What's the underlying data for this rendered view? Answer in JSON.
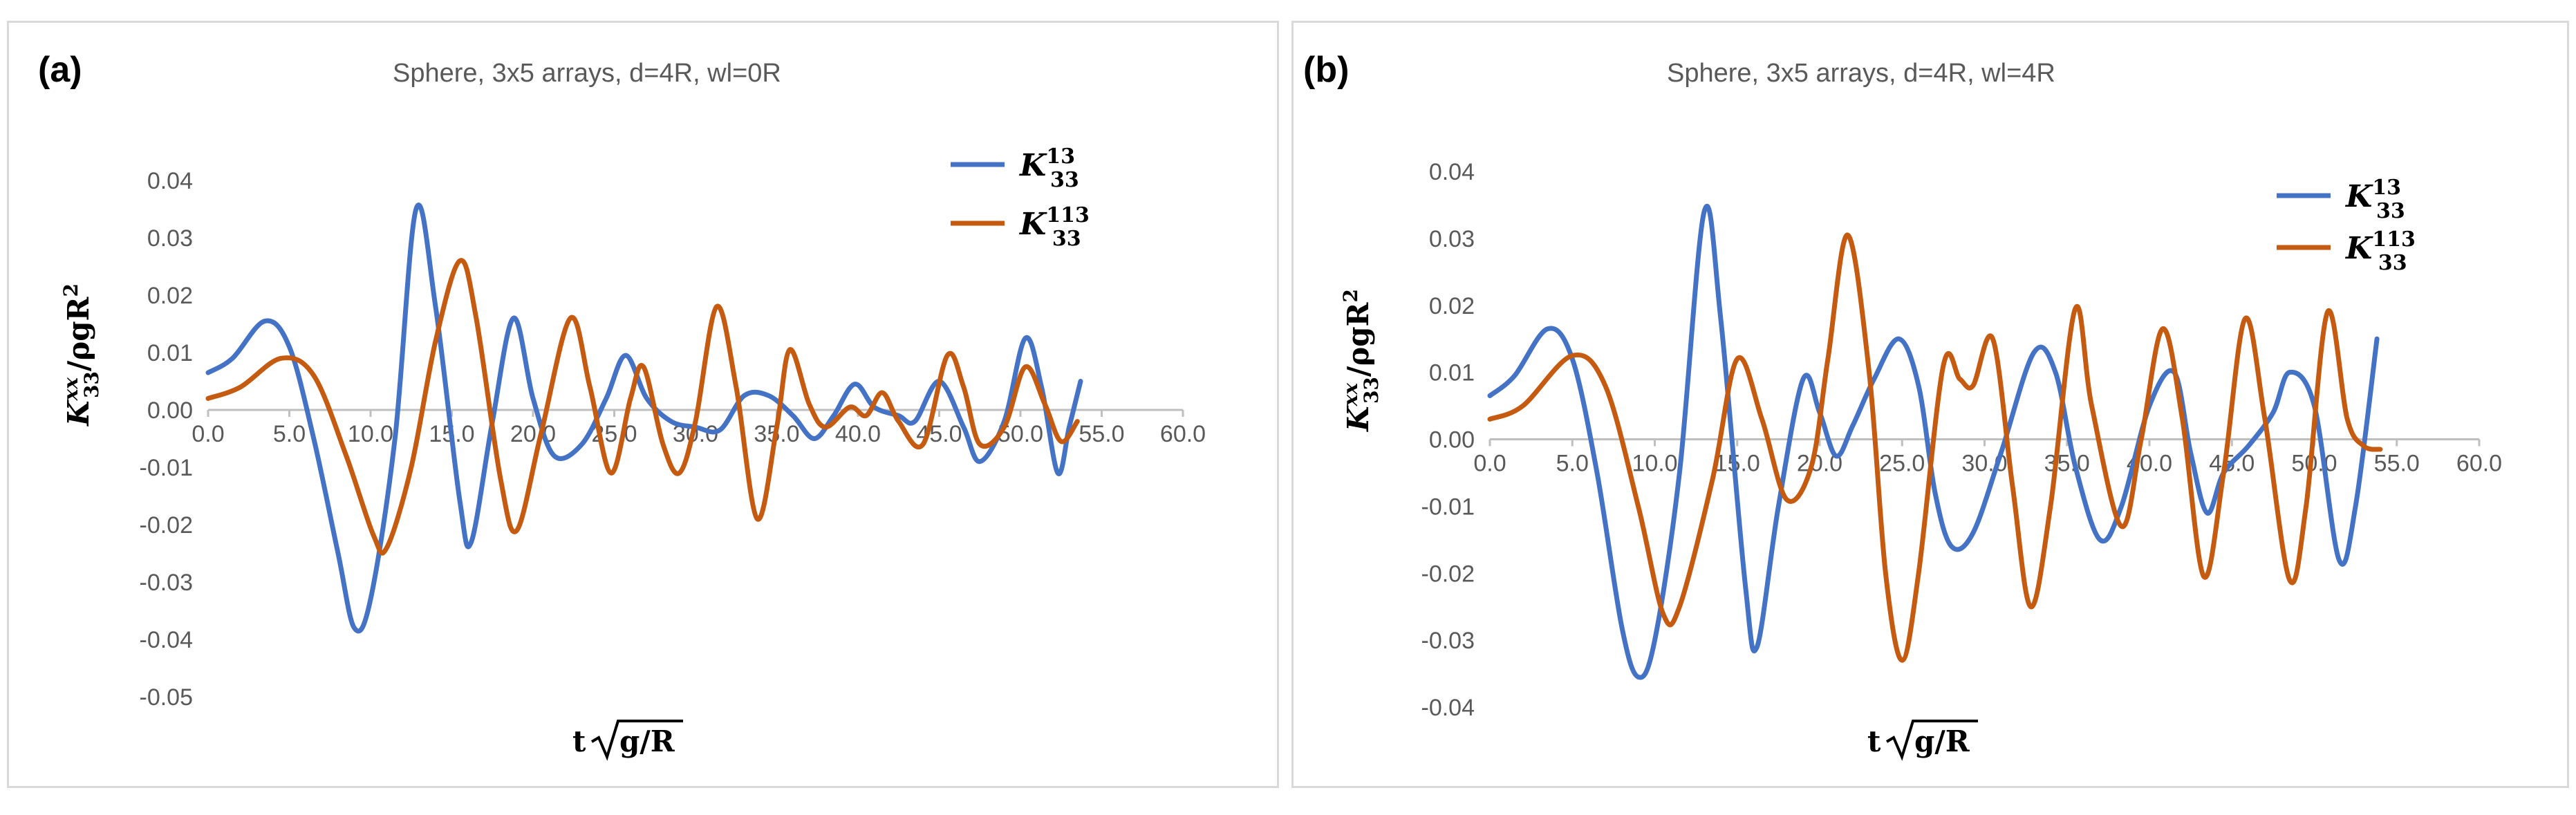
{
  "colors": {
    "blue": "#4472C4",
    "orange": "#C55A11",
    "axis": "#BFBFBF",
    "text": "#595959"
  },
  "charts": [
    {
      "label": "(a)",
      "title": "Sphere, 3x5 arrays, d=4R, wl=0R",
      "yticks": [
        "0.04",
        "0.03",
        "0.02",
        "0.01",
        "0.00",
        "-0.01",
        "-0.02",
        "-0.03",
        "-0.04",
        "-0.05"
      ],
      "xticks": [
        "0.0",
        "5.0",
        "10.0",
        "15.0",
        "20.0",
        "25.0",
        "30.0",
        "35.0",
        "40.0",
        "45.0",
        "50.0",
        "55.0",
        "60.0"
      ],
      "legend": [
        "K",
        "K"
      ],
      "legend_sub": [
        "33",
        "33"
      ],
      "legend_sup": [
        "13",
        "113"
      ],
      "ylabel_main": "K",
      "ylabel_sup": "xx",
      "ylabel_sub": "33",
      "ylabel_rest": "/ρgR",
      "ylabel_pow": "2",
      "xlabel_t": "t",
      "xlabel_rad": "g/R"
    },
    {
      "label": "(b)",
      "title": "Sphere, 3x5 arrays, d=4R, wl=4R",
      "yticks": [
        "0.04",
        "0.03",
        "0.02",
        "0.01",
        "0.00",
        "-0.01",
        "-0.02",
        "-0.03",
        "-0.04"
      ],
      "xticks": [
        "0.0",
        "5.0",
        "10.0",
        "15.0",
        "20.0",
        "25.0",
        "30.0",
        "35.0",
        "40.0",
        "45.0",
        "50.0",
        "55.0",
        "60.0"
      ],
      "legend": [
        "K",
        "K"
      ],
      "legend_sub": [
        "33",
        "33"
      ],
      "legend_sup": [
        "13",
        "113"
      ],
      "ylabel_main": "K",
      "ylabel_sup": "xx",
      "ylabel_sub": "33",
      "ylabel_rest": "/ρgR",
      "ylabel_pow": "2",
      "xlabel_t": "t",
      "xlabel_rad": "g/R"
    }
  ],
  "chart_data": [
    {
      "type": "line",
      "title": "Sphere, 3x5 arrays, d=4R, wl=0R",
      "xlabel": "t√(g/R)",
      "ylabel": "K33xx/ρgR2",
      "xlim": [
        0,
        60
      ],
      "ylim": [
        -0.05,
        0.04
      ],
      "grid": false,
      "legend": "top-right",
      "series": [
        {
          "name": "K33^13",
          "color": "#4472C4",
          "points": [
            [
              0,
              0.0065
            ],
            [
              1.5,
              0.009
            ],
            [
              3.5,
              0.0155
            ],
            [
              5,
              0.011
            ],
            [
              6.5,
              -0.005
            ],
            [
              8,
              -0.025
            ],
            [
              9,
              -0.038
            ],
            [
              10,
              -0.033
            ],
            [
              11.5,
              -0.005
            ],
            [
              12.8,
              0.035
            ],
            [
              14,
              0.018
            ],
            [
              15.5,
              -0.016
            ],
            [
              16.2,
              -0.023
            ],
            [
              17.5,
              -0.002
            ],
            [
              18.8,
              0.016
            ],
            [
              20,
              0.002
            ],
            [
              21.3,
              -0.008
            ],
            [
              23,
              -0.006
            ],
            [
              24.5,
              0.002
            ],
            [
              25.7,
              0.0095
            ],
            [
              27,
              0.002
            ],
            [
              28.5,
              -0.002
            ],
            [
              30,
              -0.003
            ],
            [
              31.5,
              -0.0035
            ],
            [
              33,
              0.0025
            ],
            [
              34.5,
              0.0025
            ],
            [
              36,
              -0.001
            ],
            [
              37.3,
              -0.005
            ],
            [
              38.5,
              -0.001
            ],
            [
              39.8,
              0.0045
            ],
            [
              41,
              0.0005
            ],
            [
              42.5,
              -0.001
            ],
            [
              43.5,
              -0.002
            ],
            [
              45,
              0.005
            ],
            [
              46.5,
              -0.003
            ],
            [
              47.5,
              -0.009
            ],
            [
              49,
              -0.002
            ],
            [
              50.3,
              0.0125
            ],
            [
              51.3,
              0.004
            ],
            [
              52.3,
              -0.011
            ],
            [
              53,
              -0.003
            ],
            [
              53.7,
              0.005
            ]
          ]
        },
        {
          "name": "K33^113",
          "color": "#C55A11",
          "points": [
            [
              0,
              0.002
            ],
            [
              2,
              0.004
            ],
            [
              4.5,
              0.009
            ],
            [
              6.5,
              0.006
            ],
            [
              8.5,
              -0.008
            ],
            [
              10.2,
              -0.022
            ],
            [
              11,
              -0.024
            ],
            [
              12.5,
              -0.01
            ],
            [
              14,
              0.012
            ],
            [
              15.5,
              0.026
            ],
            [
              16.5,
              0.016
            ],
            [
              18,
              -0.012
            ],
            [
              19,
              -0.021
            ],
            [
              20.5,
              -0.004
            ],
            [
              22.3,
              0.016
            ],
            [
              23.5,
              0.004
            ],
            [
              24.8,
              -0.011
            ],
            [
              26,
              0.002
            ],
            [
              26.8,
              0.0075
            ],
            [
              28,
              -0.006
            ],
            [
              29,
              -0.011
            ],
            [
              30,
              -0.002
            ],
            [
              31.3,
              0.018
            ],
            [
              32.5,
              0.004
            ],
            [
              33.8,
              -0.019
            ],
            [
              35,
              -0.003
            ],
            [
              35.8,
              0.0105
            ],
            [
              37,
              0.001
            ],
            [
              38,
              -0.003
            ],
            [
              39.5,
              0.0005
            ],
            [
              40.5,
              -0.001
            ],
            [
              41.5,
              0.003
            ],
            [
              42.5,
              -0.002
            ],
            [
              44,
              -0.006
            ],
            [
              45.5,
              0.0095
            ],
            [
              46.5,
              0.004
            ],
            [
              47.5,
              -0.006
            ],
            [
              49,
              -0.003
            ],
            [
              50.3,
              0.0075
            ],
            [
              51.5,
              0.001
            ],
            [
              52.5,
              -0.0055
            ],
            [
              53.5,
              -0.002
            ]
          ]
        }
      ]
    },
    {
      "type": "line",
      "title": "Sphere, 3x5 arrays, d=4R, wl=4R",
      "xlabel": "t√(g/R)",
      "ylabel": "K33xx/ρgR2",
      "xlim": [
        0,
        60
      ],
      "ylim": [
        -0.04,
        0.04
      ],
      "grid": false,
      "legend": "top-right",
      "series": [
        {
          "name": "K33^13",
          "color": "#4472C4",
          "points": [
            [
              0,
              0.0065
            ],
            [
              1.5,
              0.0095
            ],
            [
              3.5,
              0.0165
            ],
            [
              5,
              0.012
            ],
            [
              6.5,
              -0.005
            ],
            [
              8,
              -0.028
            ],
            [
              9,
              -0.0355
            ],
            [
              10,
              -0.03
            ],
            [
              11.5,
              -0.005
            ],
            [
              13,
              0.034
            ],
            [
              14,
              0.018
            ],
            [
              15.5,
              -0.022
            ],
            [
              16.2,
              -0.031
            ],
            [
              17.5,
              -0.01
            ],
            [
              19,
              0.009
            ],
            [
              20,
              0.004
            ],
            [
              21,
              -0.0025
            ],
            [
              22,
              0.002
            ],
            [
              23.3,
              0.009
            ],
            [
              24.8,
              0.015
            ],
            [
              26,
              0.008
            ],
            [
              27,
              -0.008
            ],
            [
              28,
              -0.016
            ],
            [
              29.3,
              -0.014
            ],
            [
              31,
              -0.002
            ],
            [
              33,
              0.013
            ],
            [
              34.3,
              0.01
            ],
            [
              35.5,
              -0.004
            ],
            [
              37,
              -0.015
            ],
            [
              38.3,
              -0.01
            ],
            [
              40,
              0.005
            ],
            [
              41.5,
              0.01
            ],
            [
              42.5,
              -0.002
            ],
            [
              43.5,
              -0.011
            ],
            [
              44.5,
              -0.005
            ],
            [
              46,
              -0.001
            ],
            [
              47.5,
              0.004
            ],
            [
              48.5,
              0.01
            ],
            [
              50,
              0.005
            ],
            [
              51.5,
              -0.018
            ],
            [
              52.5,
              -0.01
            ],
            [
              53.8,
              0.015
            ]
          ]
        },
        {
          "name": "K33^113",
          "color": "#C55A11",
          "points": [
            [
              0,
              0.003
            ],
            [
              2,
              0.005
            ],
            [
              5,
              0.0125
            ],
            [
              7,
              0.008
            ],
            [
              9,
              -0.01
            ],
            [
              10.5,
              -0.026
            ],
            [
              11.5,
              -0.025
            ],
            [
              13.5,
              -0.006
            ],
            [
              15,
              0.012
            ],
            [
              16.5,
              0.003
            ],
            [
              18,
              -0.009
            ],
            [
              19.5,
              -0.004
            ],
            [
              20.5,
              0.012
            ],
            [
              21.7,
              0.0305
            ],
            [
              23,
              0.01
            ],
            [
              24,
              -0.02
            ],
            [
              25,
              -0.033
            ],
            [
              26,
              -0.02
            ],
            [
              27.5,
              0.011
            ],
            [
              28.5,
              0.009
            ],
            [
              29.3,
              0.008
            ],
            [
              30.5,
              0.015
            ],
            [
              31.7,
              -0.007
            ],
            [
              32.8,
              -0.025
            ],
            [
              34,
              -0.01
            ],
            [
              35.5,
              0.0195
            ],
            [
              36.5,
              0.005
            ],
            [
              38.3,
              -0.013
            ],
            [
              39.5,
              0.0
            ],
            [
              40.8,
              0.0165
            ],
            [
              42,
              0.003
            ],
            [
              43.3,
              -0.0205
            ],
            [
              44.5,
              -0.005
            ],
            [
              45.8,
              0.018
            ],
            [
              47,
              0.003
            ],
            [
              48.5,
              -0.021
            ],
            [
              49.5,
              -0.01
            ],
            [
              50.8,
              0.019
            ],
            [
              52,
              0.003
            ],
            [
              53,
              -0.001
            ],
            [
              54,
              -0.0015
            ]
          ]
        }
      ]
    }
  ]
}
